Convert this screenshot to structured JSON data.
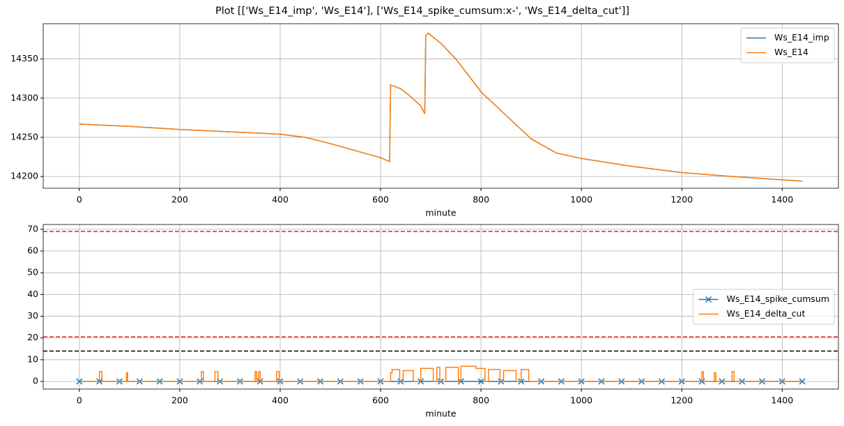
{
  "title": "Plot [['Ws_E14_imp', 'Ws_E14'], ['Ws_E14_spike_cumsum:x-', 'Ws_E14_delta_cut']]",
  "chart_data": [
    {
      "type": "line",
      "xlabel": "minute",
      "x": [
        0,
        100,
        200,
        300,
        400,
        450,
        500,
        550,
        600,
        618,
        620,
        640,
        660,
        680,
        688,
        690,
        695,
        720,
        750,
        780,
        800,
        850,
        900,
        950,
        1000,
        1100,
        1200,
        1300,
        1440
      ],
      "series": [
        {
          "name": "Ws_E14_imp",
          "color": "#1f77b4",
          "values": [
            14267,
            14264,
            14260,
            14257,
            14254,
            14250,
            14242,
            14233,
            14224,
            14219,
            14317,
            14312,
            14302,
            14290,
            14280,
            14380,
            14383,
            14370,
            14350,
            14325,
            14308,
            14278,
            14248,
            14230,
            14223,
            14213,
            14205,
            14200,
            14194
          ]
        },
        {
          "name": "Ws_E14",
          "color": "#ff7f0e",
          "values": [
            14267,
            14264,
            14260,
            14257,
            14254,
            14250,
            14242,
            14233,
            14224,
            14219,
            14317,
            14312,
            14302,
            14290,
            14280,
            14380,
            14383,
            14370,
            14350,
            14325,
            14308,
            14278,
            14248,
            14230,
            14223,
            14213,
            14205,
            14200,
            14194
          ]
        }
      ],
      "xlim": [
        -72,
        1512
      ],
      "xticks": [
        0,
        200,
        400,
        600,
        800,
        1000,
        1200,
        1400
      ],
      "ylim": [
        14185,
        14395
      ],
      "yticks": [
        14200,
        14250,
        14300,
        14350
      ],
      "grid": true,
      "legend": "upper right"
    },
    {
      "type": "line",
      "xlabel": "minute",
      "series": [
        {
          "name": "Ws_E14_spike_cumsum",
          "color": "#1f77b4",
          "marker": "x",
          "x": [
            0,
            40,
            80,
            120,
            160,
            200,
            240,
            280,
            320,
            360,
            400,
            440,
            480,
            520,
            560,
            600,
            640,
            680,
            720,
            760,
            800,
            840,
            880,
            920,
            960,
            1000,
            1040,
            1080,
            1120,
            1160,
            1200,
            1240,
            1280,
            1320,
            1360,
            1400,
            1440
          ],
          "values": [
            0,
            0,
            0,
            0,
            0,
            0,
            0,
            0,
            0,
            0,
            0,
            0,
            0,
            0,
            0,
            0,
            0,
            0,
            0,
            0,
            0,
            0,
            0,
            0,
            0,
            0,
            0,
            0,
            0,
            0,
            0,
            0,
            0,
            0,
            0,
            0,
            0
          ]
        },
        {
          "name": "Ws_E14_delta_cut",
          "color": "#ff7f0e",
          "x": [
            0,
            40,
            40,
            45,
            45,
            94,
            94,
            96,
            96,
            243,
            243,
            247,
            247,
            270,
            270,
            276,
            276,
            350,
            350,
            353,
            353,
            357,
            357,
            360,
            360,
            393,
            393,
            398,
            398,
            620,
            620,
            623,
            623,
            638,
            638,
            645,
            645,
            665,
            665,
            680,
            680,
            705,
            705,
            712,
            712,
            718,
            718,
            730,
            730,
            755,
            755,
            760,
            760,
            790,
            790,
            808,
            808,
            815,
            815,
            838,
            838,
            845,
            845,
            870,
            870,
            880,
            880,
            895,
            895,
            1240,
            1240,
            1243,
            1243,
            1265,
            1265,
            1268,
            1268,
            1300,
            1300,
            1304,
            1304,
            1440
          ],
          "values": [
            0,
            0,
            4.5,
            4.5,
            0,
            0,
            4,
            4,
            0,
            0,
            4.5,
            4.5,
            0,
            0,
            4.5,
            4.5,
            0,
            0,
            4.5,
            4.5,
            0,
            0,
            4.5,
            4.5,
            0,
            0,
            4.5,
            4.5,
            0,
            0,
            4,
            4,
            5.5,
            5.5,
            0,
            0,
            5,
            5,
            0,
            0,
            6,
            6,
            0,
            0,
            6.5,
            6.5,
            0,
            0,
            6.5,
            6.5,
            0,
            0,
            7,
            7,
            6,
            6,
            0,
            0,
            5.5,
            5.5,
            0,
            0,
            5,
            5,
            0,
            0,
            5.5,
            5.5,
            0,
            0,
            4.5,
            4.5,
            0,
            0,
            4,
            4,
            0,
            0,
            4.5,
            4.5,
            0,
            0
          ]
        }
      ],
      "hlines": [
        {
          "value": 69,
          "color": "#d62728"
        },
        {
          "value": 20.5,
          "color": "#d62728"
        },
        {
          "value": 14,
          "color": "#000000"
        }
      ],
      "linestyle_hlines": "dashed",
      "xlim": [
        -72,
        1512
      ],
      "xticks": [
        0,
        200,
        400,
        600,
        800,
        1000,
        1200,
        1400
      ],
      "ylim": [
        -3.5,
        72.2
      ],
      "yticks": [
        0,
        10,
        20,
        30,
        40,
        50,
        60,
        70
      ],
      "grid": true,
      "legend": "center right"
    }
  ]
}
